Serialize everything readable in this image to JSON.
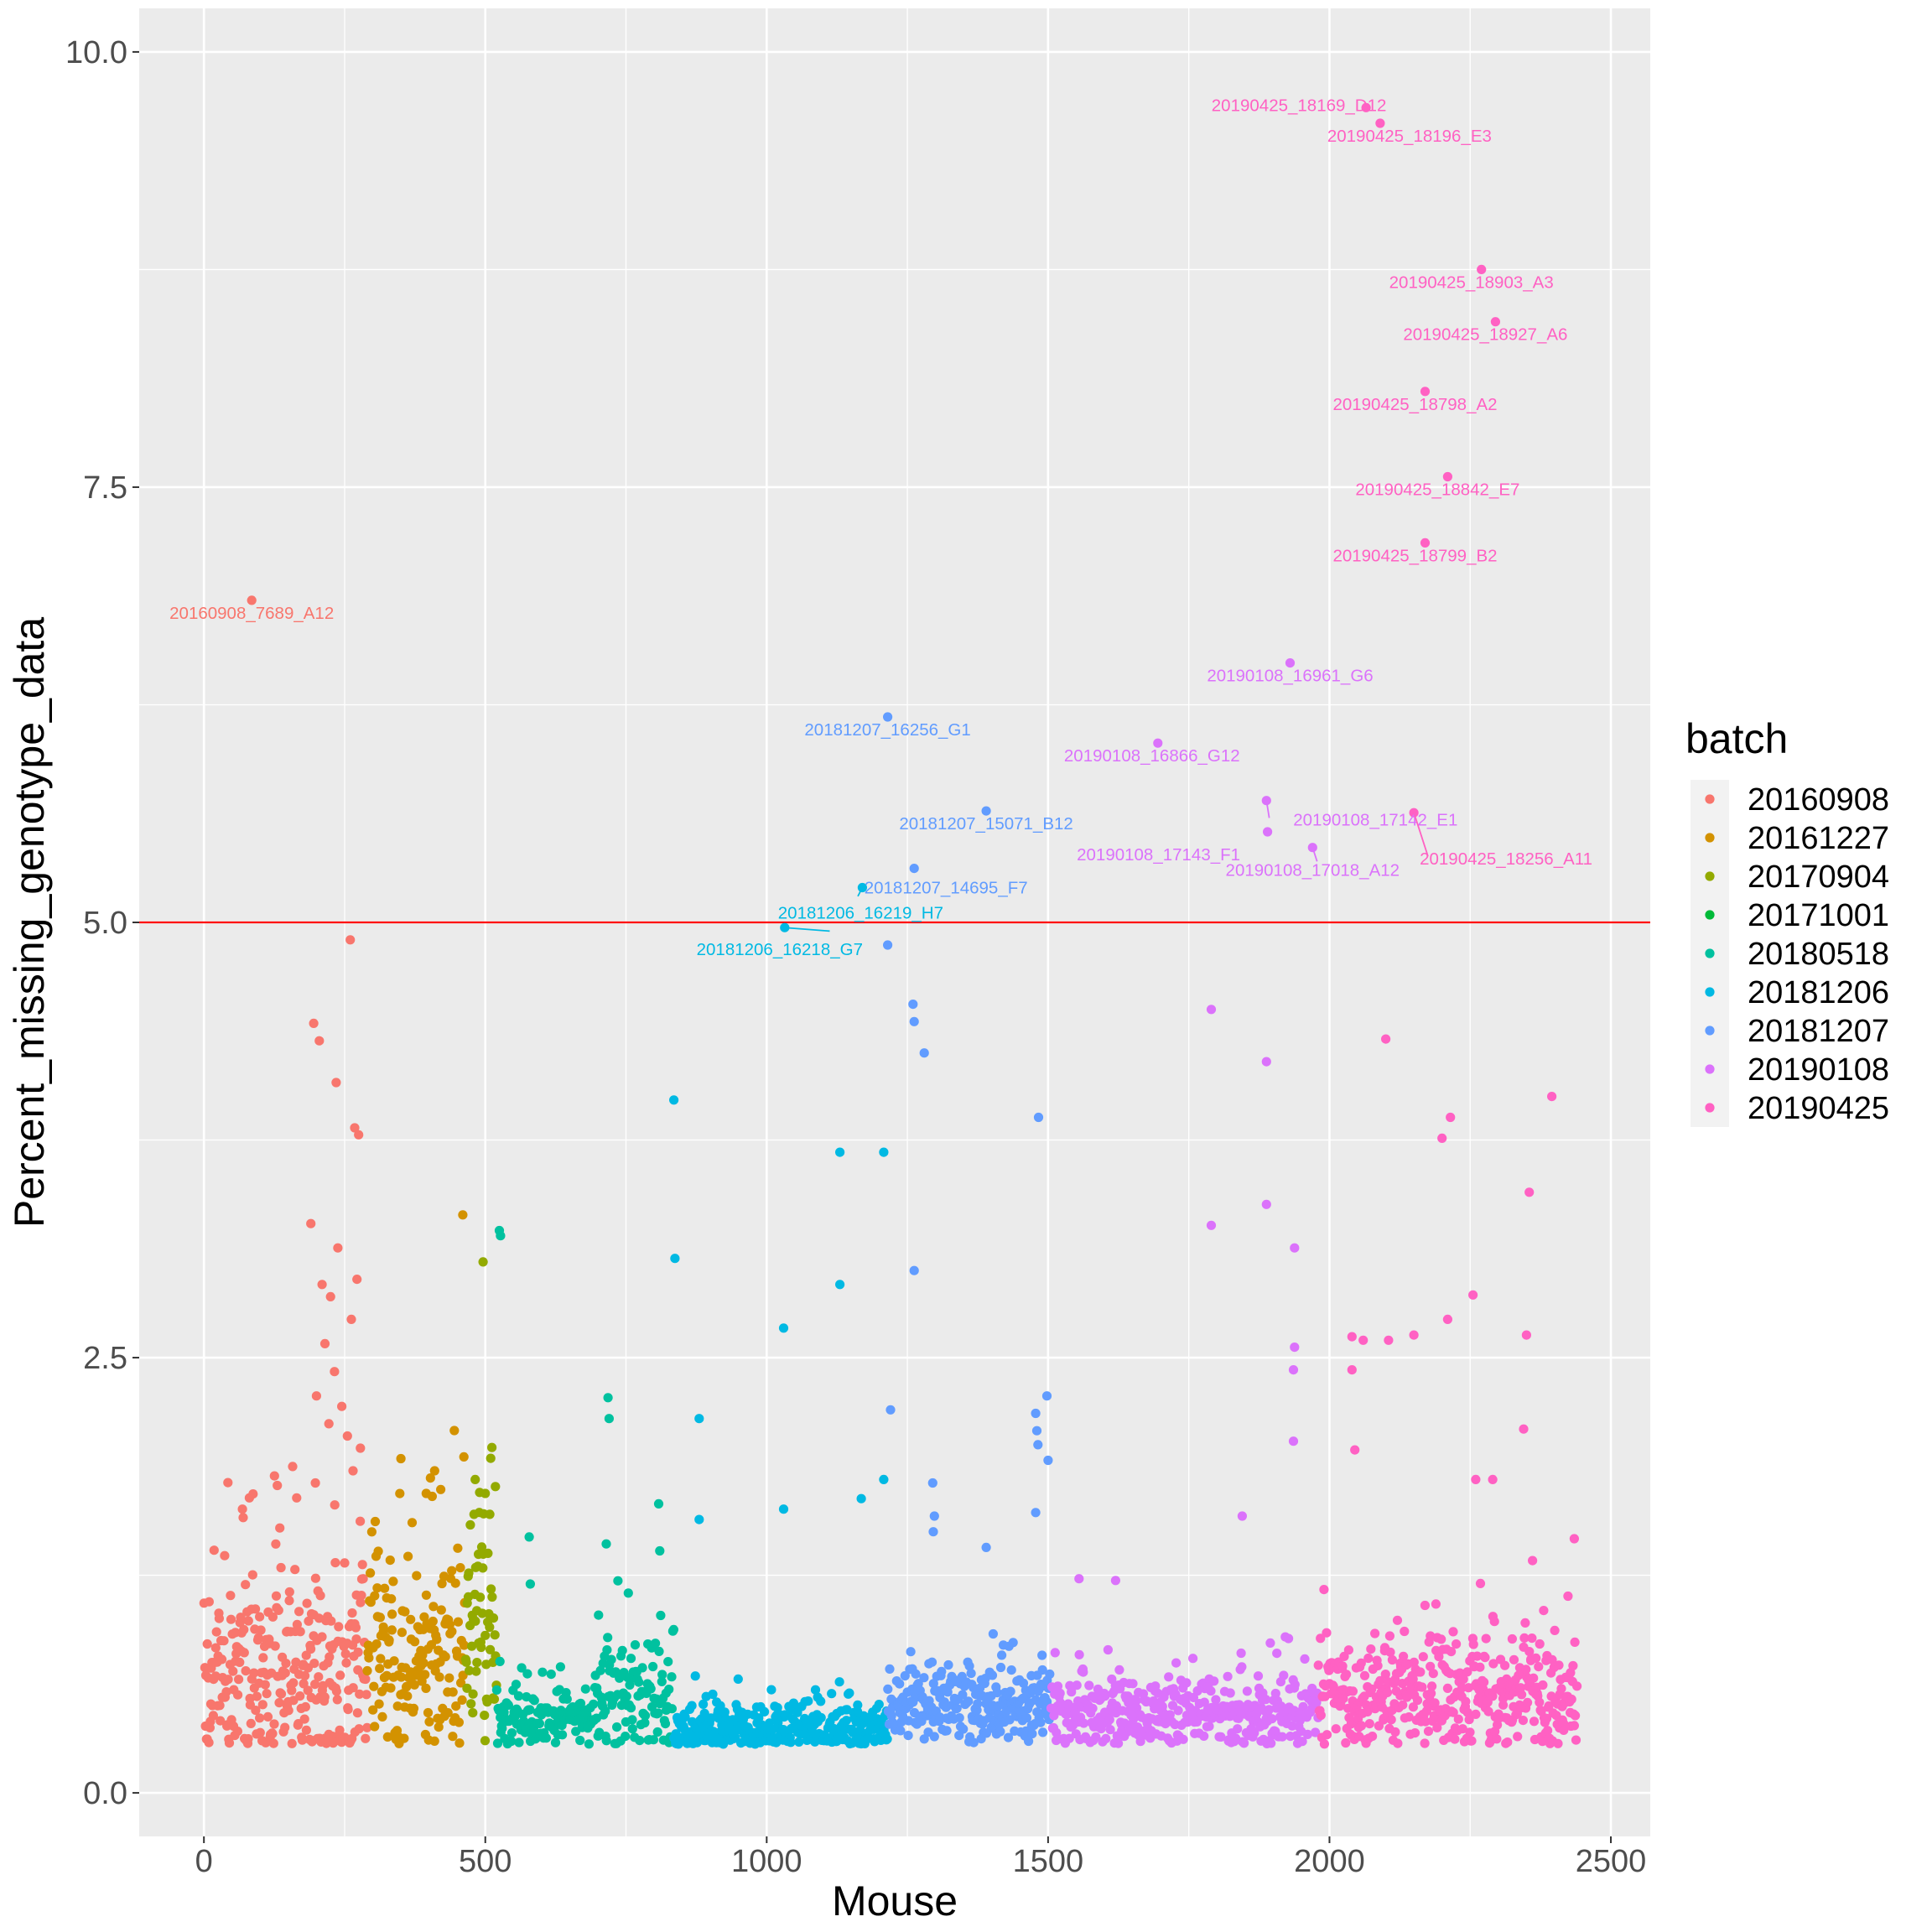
{
  "chart_data": {
    "type": "scatter",
    "xlabel": "Mouse",
    "ylabel": "Percent_missing_genotype_data",
    "xlim": [
      -115,
      2570
    ],
    "ylim": [
      -0.25,
      10.25
    ],
    "xticks": [
      0,
      500,
      1000,
      1500,
      2000,
      2500
    ],
    "xtick_labels": [
      "0",
      "500",
      "1000",
      "1500",
      "2000",
      "2500"
    ],
    "yticks": [
      0,
      2.5,
      5,
      7.5,
      10
    ],
    "ytick_labels": [
      "0.0",
      "2.5",
      "5.0",
      "7.5",
      "10.0"
    ],
    "grid": true,
    "reference_line": {
      "y": 5.0,
      "color": "#FF0000"
    },
    "legend": {
      "title": "batch",
      "position": "right",
      "entries": [
        {
          "label": "20160908",
          "color": "#F8766D"
        },
        {
          "label": "20161227",
          "color": "#D39200"
        },
        {
          "label": "20170904",
          "color": "#93AA00"
        },
        {
          "label": "20171001",
          "color": "#00BA38"
        },
        {
          "label": "20180518",
          "color": "#00C19F"
        },
        {
          "label": "20181206",
          "color": "#00B9E3"
        },
        {
          "label": "20181207",
          "color": "#619CFF"
        },
        {
          "label": "20190108",
          "color": "#DB72FB"
        },
        {
          "label": "20190425",
          "color": "#FF61C3"
        }
      ]
    },
    "bulk_series": [
      {
        "batch": "20160908",
        "x_range": [
          0,
          290
        ],
        "baseline": 0.65,
        "spread": 0.45,
        "count": 290,
        "seed": 11
      },
      {
        "batch": "20161227",
        "x_range": [
          290,
          465
        ],
        "baseline": 0.75,
        "spread": 0.45,
        "count": 170,
        "seed": 23
      },
      {
        "batch": "20170904",
        "x_range": [
          465,
          520
        ],
        "baseline": 0.9,
        "spread": 0.55,
        "count": 60,
        "seed": 37
      },
      {
        "batch": "20180518",
        "x_range": [
          520,
          700
        ],
        "baseline": 0.42,
        "spread": 0.12,
        "count": 150,
        "seed": 41
      },
      {
        "batch": "20180518",
        "x_range": [
          700,
          835
        ],
        "baseline": 0.55,
        "spread": 0.25,
        "count": 110,
        "seed": 43
      },
      {
        "batch": "20181206",
        "x_range": [
          835,
          1215
        ],
        "baseline": 0.35,
        "spread": 0.12,
        "count": 340,
        "seed": 53
      },
      {
        "batch": "20181207",
        "x_range": [
          1215,
          1505
        ],
        "baseline": 0.5,
        "spread": 0.15,
        "count": 260,
        "seed": 61
      },
      {
        "batch": "20190108",
        "x_range": [
          1505,
          1980
        ],
        "baseline": 0.45,
        "spread": 0.15,
        "count": 400,
        "seed": 71
      },
      {
        "batch": "20190425",
        "x_range": [
          1980,
          2440
        ],
        "baseline": 0.55,
        "spread": 0.25,
        "count": 420,
        "seed": 83
      }
    ],
    "points": [
      {
        "batch": "20160908",
        "x": 85,
        "y": 6.85,
        "label": "20160908_7689_A12"
      },
      {
        "batch": "20160908",
        "x": 260,
        "y": 4.9
      },
      {
        "batch": "20160908",
        "x": 195,
        "y": 4.42
      },
      {
        "batch": "20160908",
        "x": 205,
        "y": 4.32
      },
      {
        "batch": "20160908",
        "x": 235,
        "y": 4.08
      },
      {
        "batch": "20160908",
        "x": 268,
        "y": 3.82
      },
      {
        "batch": "20160908",
        "x": 275,
        "y": 3.78
      },
      {
        "batch": "20160908",
        "x": 190,
        "y": 3.27
      },
      {
        "batch": "20160908",
        "x": 238,
        "y": 3.13
      },
      {
        "batch": "20160908",
        "x": 272,
        "y": 2.95
      },
      {
        "batch": "20160908",
        "x": 210,
        "y": 2.92
      },
      {
        "batch": "20160908",
        "x": 225,
        "y": 2.85
      },
      {
        "batch": "20160908",
        "x": 215,
        "y": 2.58
      },
      {
        "batch": "20160908",
        "x": 262,
        "y": 2.72
      },
      {
        "batch": "20160908",
        "x": 232,
        "y": 2.42
      },
      {
        "batch": "20160908",
        "x": 200,
        "y": 2.28
      },
      {
        "batch": "20160908",
        "x": 245,
        "y": 2.22
      },
      {
        "batch": "20160908",
        "x": 222,
        "y": 2.12
      },
      {
        "batch": "20160908",
        "x": 255,
        "y": 2.05
      },
      {
        "batch": "20160908",
        "x": 278,
        "y": 1.98
      },
      {
        "batch": "20160908",
        "x": 198,
        "y": 1.78
      },
      {
        "batch": "20160908",
        "x": 265,
        "y": 1.85
      },
      {
        "batch": "20161227",
        "x": 350,
        "y": 1.92
      },
      {
        "batch": "20161227",
        "x": 410,
        "y": 1.85
      },
      {
        "batch": "20161227",
        "x": 460,
        "y": 3.32
      },
      {
        "batch": "20161227",
        "x": 462,
        "y": 1.93
      },
      {
        "batch": "20161227",
        "x": 395,
        "y": 1.72
      },
      {
        "batch": "20170904",
        "x": 496,
        "y": 3.05
      },
      {
        "batch": "20170904",
        "x": 482,
        "y": 1.8
      },
      {
        "batch": "20170904",
        "x": 500,
        "y": 1.72
      },
      {
        "batch": "20170904",
        "x": 508,
        "y": 1.6
      },
      {
        "batch": "20180518",
        "x": 525,
        "y": 3.23
      },
      {
        "batch": "20180518",
        "x": 527,
        "y": 3.2
      },
      {
        "batch": "20180518",
        "x": 718,
        "y": 2.27
      },
      {
        "batch": "20180518",
        "x": 720,
        "y": 2.15
      },
      {
        "batch": "20180518",
        "x": 808,
        "y": 1.66
      },
      {
        "batch": "20180518",
        "x": 578,
        "y": 1.47
      },
      {
        "batch": "20180518",
        "x": 715,
        "y": 1.43
      },
      {
        "batch": "20180518",
        "x": 810,
        "y": 1.39
      },
      {
        "batch": "20180518",
        "x": 580,
        "y": 1.2
      },
      {
        "batch": "20181206",
        "x": 835,
        "y": 3.98
      },
      {
        "batch": "20181206",
        "x": 837,
        "y": 3.07
      },
      {
        "batch": "20181206",
        "x": 880,
        "y": 2.15
      },
      {
        "batch": "20181206",
        "x": 1130,
        "y": 3.68
      },
      {
        "batch": "20181206",
        "x": 1130,
        "y": 2.92
      },
      {
        "batch": "20181206",
        "x": 1030,
        "y": 2.67
      },
      {
        "batch": "20181206",
        "x": 1208,
        "y": 3.68
      },
      {
        "batch": "20181206",
        "x": 1030,
        "y": 1.63
      },
      {
        "batch": "20181206",
        "x": 880,
        "y": 1.57
      },
      {
        "batch": "20181206",
        "x": 1168,
        "y": 1.69
      },
      {
        "batch": "20181206",
        "x": 1208,
        "y": 1.8
      },
      {
        "batch": "20181206",
        "x": 1170,
        "y": 5.2,
        "label": "20181206_16219_H7"
      },
      {
        "batch": "20181206",
        "x": 1032,
        "y": 4.97,
        "label": "20181206_16218_G7"
      },
      {
        "batch": "20181207",
        "x": 1215,
        "y": 6.18,
        "label": "20181207_16256_G1"
      },
      {
        "batch": "20181207",
        "x": 1390,
        "y": 5.64,
        "label": "20181207_15071_B12"
      },
      {
        "batch": "20181207",
        "x": 1262,
        "y": 5.31,
        "label": "20181207_14695_F7"
      },
      {
        "batch": "20181207",
        "x": 1215,
        "y": 4.87
      },
      {
        "batch": "20181207",
        "x": 1260,
        "y": 4.53
      },
      {
        "batch": "20181207",
        "x": 1262,
        "y": 4.43
      },
      {
        "batch": "20181207",
        "x": 1280,
        "y": 4.25
      },
      {
        "batch": "20181207",
        "x": 1483,
        "y": 3.88
      },
      {
        "batch": "20181207",
        "x": 1262,
        "y": 3.0
      },
      {
        "batch": "20181207",
        "x": 1498,
        "y": 2.28
      },
      {
        "batch": "20181207",
        "x": 1478,
        "y": 2.18
      },
      {
        "batch": "20181207",
        "x": 1220,
        "y": 2.2
      },
      {
        "batch": "20181207",
        "x": 1480,
        "y": 2.08
      },
      {
        "batch": "20181207",
        "x": 1482,
        "y": 2.0
      },
      {
        "batch": "20181207",
        "x": 1500,
        "y": 1.91
      },
      {
        "batch": "20181207",
        "x": 1295,
        "y": 1.78
      },
      {
        "batch": "20181207",
        "x": 1478,
        "y": 1.61
      },
      {
        "batch": "20181207",
        "x": 1298,
        "y": 1.59
      },
      {
        "batch": "20181207",
        "x": 1296,
        "y": 1.5
      },
      {
        "batch": "20181207",
        "x": 1390,
        "y": 1.41
      },
      {
        "batch": "20190108",
        "x": 1930,
        "y": 6.49,
        "label": "20190108_16961_G6"
      },
      {
        "batch": "20190108",
        "x": 1695,
        "y": 6.03,
        "label": "20190108_16866_G12"
      },
      {
        "batch": "20190108",
        "x": 1890,
        "y": 5.52,
        "label": "20190108_17143_F1"
      },
      {
        "batch": "20190108",
        "x": 1888,
        "y": 5.7,
        "label": "20190108_17142_E1"
      },
      {
        "batch": "20190108",
        "x": 1970,
        "y": 5.43,
        "label": "20190108_17018_A12"
      },
      {
        "batch": "20190108",
        "x": 1790,
        "y": 4.5
      },
      {
        "batch": "20190108",
        "x": 1888,
        "y": 4.2
      },
      {
        "batch": "20190108",
        "x": 1888,
        "y": 3.38
      },
      {
        "batch": "20190108",
        "x": 1790,
        "y": 3.26
      },
      {
        "batch": "20190108",
        "x": 1938,
        "y": 3.13
      },
      {
        "batch": "20190108",
        "x": 1938,
        "y": 2.56
      },
      {
        "batch": "20190108",
        "x": 1936,
        "y": 2.43
      },
      {
        "batch": "20190108",
        "x": 1936,
        "y": 2.02
      },
      {
        "batch": "20190108",
        "x": 1845,
        "y": 1.59
      },
      {
        "batch": "20190108",
        "x": 1555,
        "y": 1.23
      },
      {
        "batch": "20190108",
        "x": 1620,
        "y": 1.22
      },
      {
        "batch": "20190425",
        "x": 2065,
        "y": 9.68,
        "label": "20190425_18169_D12"
      },
      {
        "batch": "20190425",
        "x": 2090,
        "y": 9.59,
        "label": "20190425_18196_E3"
      },
      {
        "batch": "20190425",
        "x": 2270,
        "y": 8.75,
        "label": "20190425_18903_A3"
      },
      {
        "batch": "20190425",
        "x": 2295,
        "y": 8.45,
        "label": "20190425_18927_A6"
      },
      {
        "batch": "20190425",
        "x": 2170,
        "y": 8.05,
        "label": "20190425_18798_A2"
      },
      {
        "batch": "20190425",
        "x": 2210,
        "y": 7.56,
        "label": "20190425_18842_E7"
      },
      {
        "batch": "20190425",
        "x": 2170,
        "y": 7.18,
        "label": "20190425_18799_B2"
      },
      {
        "batch": "20190425",
        "x": 2150,
        "y": 5.63,
        "label": "20190425_18256_A11"
      },
      {
        "batch": "20190425",
        "x": 2100,
        "y": 4.33
      },
      {
        "batch": "20190425",
        "x": 2395,
        "y": 4.0
      },
      {
        "batch": "20190425",
        "x": 2215,
        "y": 3.88
      },
      {
        "batch": "20190425",
        "x": 2200,
        "y": 3.76
      },
      {
        "batch": "20190425",
        "x": 2355,
        "y": 3.45
      },
      {
        "batch": "20190425",
        "x": 2255,
        "y": 2.86
      },
      {
        "batch": "20190425",
        "x": 2210,
        "y": 2.72
      },
      {
        "batch": "20190425",
        "x": 2350,
        "y": 2.63
      },
      {
        "batch": "20190425",
        "x": 2040,
        "y": 2.62
      },
      {
        "batch": "20190425",
        "x": 2060,
        "y": 2.6
      },
      {
        "batch": "20190425",
        "x": 2105,
        "y": 2.6
      },
      {
        "batch": "20190425",
        "x": 2150,
        "y": 2.63
      },
      {
        "batch": "20190425",
        "x": 2040,
        "y": 2.43
      },
      {
        "batch": "20190425",
        "x": 2345,
        "y": 2.09
      },
      {
        "batch": "20190425",
        "x": 2045,
        "y": 1.97
      },
      {
        "batch": "20190425",
        "x": 2260,
        "y": 1.8
      },
      {
        "batch": "20190425",
        "x": 2290,
        "y": 1.8
      },
      {
        "batch": "20190425",
        "x": 2435,
        "y": 1.46
      }
    ]
  }
}
